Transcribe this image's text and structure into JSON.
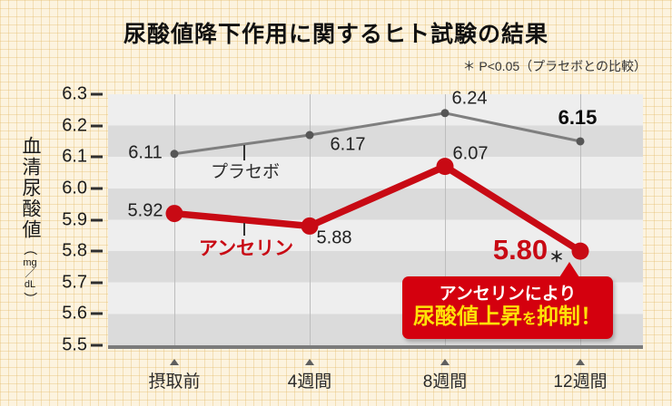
{
  "title": "尿酸値降下作用に関するヒト試験の結果",
  "note": "＊ P<0.05（プラセボとの比較）",
  "y_axis_title": {
    "kanji": "血清尿酸値",
    "unit_open": "（",
    "unit_mg": "mg",
    "unit_slash": "／",
    "unit_dl": "dL",
    "unit_close": "）"
  },
  "significance_marker": "＊",
  "callout": {
    "line1": "アンセリンにより",
    "line2_highlight": "尿酸値上昇",
    "line2_particle": "を",
    "line2_end": "抑制！"
  },
  "colors": {
    "anserine_red": "#c80a14",
    "placebo_gray": "#7f7f7f",
    "placebo_dot": "#565656",
    "callout_bg": "#d4000e",
    "callout_yellow": "#ffe108",
    "band_light": "#eeeeee",
    "band_dark": "#dbdbdb",
    "background": "#fcf3df"
  },
  "chart_data": {
    "type": "line",
    "title": "尿酸値降下作用に関するヒト試験の結果",
    "categories": [
      "摂取前",
      "4週間",
      "8週間",
      "12週間"
    ],
    "series": [
      {
        "name": "プラセボ",
        "values": [
          6.11,
          6.17,
          6.24,
          6.15
        ],
        "point_labels": [
          "6.11",
          "6.17",
          "6.24",
          "6.15"
        ],
        "color": "#7f7f7f"
      },
      {
        "name": "アンセリン",
        "values": [
          5.92,
          5.88,
          6.07,
          5.8
        ],
        "point_labels": [
          "5.92",
          "5.88",
          "6.07",
          "5.80"
        ],
        "color": "#c80a14"
      }
    ],
    "ylabel": "血清尿酸値（mg／dL）",
    "ylim": [
      5.5,
      6.3
    ],
    "yticks": [
      "6.3",
      "6.2",
      "6.1",
      "6.0",
      "5.9",
      "5.8",
      "5.7",
      "5.6",
      "5.5"
    ],
    "grid": "horizontal-bands-per-0.1",
    "legend_position": "inline-labels-with-leader-lines",
    "annotation": "12週間のアンセリン値 5.80 に有意差マーク ＊"
  }
}
